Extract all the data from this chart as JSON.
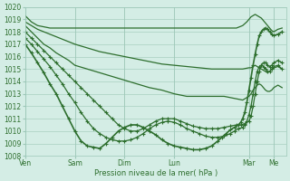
{
  "bg_color": "#d4ede5",
  "grid_color": "#9dc8b8",
  "line_color": "#2d6e2d",
  "xlabel": "Pression niveau de la mer( hPa )",
  "ylim": [
    1008,
    1020
  ],
  "yticks": [
    1008,
    1009,
    1010,
    1011,
    1012,
    1013,
    1014,
    1015,
    1016,
    1017,
    1018,
    1019,
    1020
  ],
  "xtick_labels": [
    "Ven",
    "Sam",
    "Dim",
    "Lun",
    "Mar",
    "Me"
  ],
  "xtick_positions": [
    0,
    48,
    96,
    144,
    216,
    240
  ],
  "xlim": [
    0,
    252
  ],
  "series": [
    {
      "x": [
        0,
        6,
        12,
        18,
        24,
        30,
        36,
        42,
        48,
        60,
        72,
        84,
        96,
        108,
        120,
        132,
        144,
        156,
        168,
        180,
        192,
        204,
        210,
        214,
        216,
        218,
        220,
        222,
        224,
        226,
        228,
        230,
        232,
        234,
        236,
        238,
        240,
        244,
        248
      ],
      "y": [
        1019.3,
        1018.8,
        1018.5,
        1018.4,
        1018.3,
        1018.3,
        1018.3,
        1018.3,
        1018.3,
        1018.3,
        1018.3,
        1018.3,
        1018.3,
        1018.3,
        1018.3,
        1018.3,
        1018.3,
        1018.3,
        1018.3,
        1018.3,
        1018.3,
        1018.3,
        1018.5,
        1018.8,
        1019.0,
        1019.2,
        1019.3,
        1019.4,
        1019.3,
        1019.2,
        1019.1,
        1018.9,
        1018.7,
        1018.5,
        1018.3,
        1018.1,
        1018.0,
        1018.2,
        1018.3
      ],
      "marker": false,
      "lw": 0.9
    },
    {
      "x": [
        0,
        6,
        12,
        18,
        24,
        30,
        36,
        42,
        48,
        60,
        72,
        84,
        96,
        108,
        120,
        132,
        144,
        156,
        168,
        180,
        192,
        204,
        210,
        216,
        218,
        220,
        222,
        224,
        226,
        228,
        230,
        232,
        234,
        236,
        238,
        240,
        244,
        248
      ],
      "y": [
        1018.8,
        1018.5,
        1018.2,
        1018.0,
        1017.8,
        1017.6,
        1017.4,
        1017.2,
        1017.0,
        1016.7,
        1016.4,
        1016.2,
        1016.0,
        1015.8,
        1015.6,
        1015.4,
        1015.3,
        1015.2,
        1015.1,
        1015.0,
        1015.0,
        1015.0,
        1015.0,
        1015.1,
        1015.1,
        1015.2,
        1015.3,
        1015.2,
        1015.1,
        1015.0,
        1014.9,
        1014.8,
        1014.7,
        1014.8,
        1015.0,
        1015.1,
        1015.2,
        1015.0
      ],
      "marker": false,
      "lw": 0.9
    },
    {
      "x": [
        0,
        6,
        12,
        18,
        24,
        30,
        36,
        42,
        48,
        60,
        72,
        84,
        96,
        108,
        120,
        132,
        144,
        156,
        168,
        180,
        192,
        210,
        216,
        218,
        220,
        222,
        224,
        226,
        228,
        230,
        232,
        234,
        236,
        238,
        240,
        244,
        248
      ],
      "y": [
        1018.5,
        1018.0,
        1017.5,
        1017.0,
        1016.7,
        1016.3,
        1016.0,
        1015.7,
        1015.3,
        1015.0,
        1014.7,
        1014.4,
        1014.1,
        1013.8,
        1013.5,
        1013.3,
        1013.0,
        1012.8,
        1012.8,
        1012.8,
        1012.8,
        1012.5,
        1012.8,
        1013.0,
        1013.3,
        1013.5,
        1013.7,
        1013.8,
        1013.7,
        1013.5,
        1013.3,
        1013.2,
        1013.2,
        1013.3,
        1013.5,
        1013.7,
        1013.5
      ],
      "marker": false,
      "lw": 0.9
    },
    {
      "x": [
        0,
        6,
        12,
        18,
        24,
        30,
        36,
        42,
        48,
        54,
        60,
        66,
        72,
        78,
        84,
        90,
        96,
        102,
        108,
        114,
        120,
        126,
        132,
        138,
        144,
        150,
        156,
        162,
        168,
        174,
        180,
        186,
        192,
        198,
        204,
        208,
        212,
        216,
        218,
        220,
        222,
        224,
        226,
        228,
        230,
        232,
        234,
        236,
        238,
        240,
        244,
        248
      ],
      "y": [
        1018.0,
        1017.5,
        1017.0,
        1016.5,
        1016.0,
        1015.5,
        1015.0,
        1014.5,
        1014.0,
        1013.5,
        1013.0,
        1012.5,
        1012.0,
        1011.5,
        1011.0,
        1010.5,
        1010.2,
        1010.0,
        1010.0,
        1010.2,
        1010.5,
        1010.8,
        1011.0,
        1011.0,
        1011.0,
        1010.8,
        1010.6,
        1010.4,
        1010.3,
        1010.2,
        1010.2,
        1010.2,
        1010.3,
        1010.4,
        1010.5,
        1010.5,
        1010.6,
        1010.8,
        1011.2,
        1012.0,
        1013.0,
        1014.0,
        1014.8,
        1015.3,
        1015.5,
        1015.5,
        1015.3,
        1015.2,
        1015.3,
        1015.5,
        1015.7,
        1015.5
      ],
      "marker": true,
      "lw": 0.9
    },
    {
      "x": [
        0,
        6,
        12,
        18,
        24,
        30,
        36,
        42,
        48,
        54,
        60,
        66,
        72,
        78,
        84,
        90,
        96,
        102,
        108,
        114,
        120,
        126,
        132,
        138,
        144,
        150,
        156,
        162,
        168,
        174,
        180,
        186,
        192,
        198,
        202,
        206,
        210,
        212,
        214,
        216,
        218,
        220,
        222,
        224,
        226,
        228,
        230,
        232,
        234,
        236,
        238,
        240,
        244,
        248
      ],
      "y": [
        1017.5,
        1017.0,
        1016.4,
        1015.8,
        1015.2,
        1014.5,
        1013.8,
        1013.0,
        1012.3,
        1011.5,
        1010.8,
        1010.2,
        1009.8,
        1009.5,
        1009.3,
        1009.2,
        1009.2,
        1009.3,
        1009.5,
        1009.8,
        1010.2,
        1010.5,
        1010.7,
        1010.8,
        1010.7,
        1010.5,
        1010.2,
        1010.0,
        1009.8,
        1009.6,
        1009.5,
        1009.5,
        1009.6,
        1009.8,
        1010.0,
        1010.2,
        1010.3,
        1010.5,
        1010.8,
        1011.3,
        1012.0,
        1013.0,
        1014.0,
        1014.8,
        1015.2,
        1015.3,
        1015.2,
        1015.0,
        1014.8,
        1014.8,
        1015.0,
        1015.2,
        1015.3,
        1015.0
      ],
      "marker": true,
      "lw": 0.9
    },
    {
      "x": [
        0,
        6,
        12,
        18,
        24,
        30,
        36,
        42,
        48,
        54,
        60,
        66,
        72,
        78,
        84,
        90,
        96,
        102,
        108,
        114,
        120,
        126,
        132,
        138,
        144,
        150,
        156,
        162,
        168,
        174,
        180,
        186,
        190,
        194,
        198,
        202,
        206,
        208,
        210,
        212,
        214,
        216,
        218,
        220,
        222,
        224,
        226,
        228,
        230,
        232,
        234,
        236,
        238,
        240,
        244,
        248
      ],
      "y": [
        1017.0,
        1016.3,
        1015.5,
        1014.7,
        1013.8,
        1013.0,
        1012.0,
        1011.0,
        1010.0,
        1009.2,
        1008.8,
        1008.7,
        1008.6,
        1009.0,
        1009.5,
        1010.0,
        1010.3,
        1010.5,
        1010.5,
        1010.3,
        1010.0,
        1009.7,
        1009.3,
        1009.0,
        1008.8,
        1008.7,
        1008.6,
        1008.5,
        1008.5,
        1008.6,
        1008.8,
        1009.2,
        1009.5,
        1009.8,
        1010.1,
        1010.3,
        1010.5,
        1010.7,
        1011.0,
        1011.5,
        1012.3,
        1013.3,
        1014.3,
        1015.3,
        1016.2,
        1017.0,
        1017.7,
        1018.0,
        1018.2,
        1018.3,
        1018.2,
        1018.0,
        1017.8,
        1017.7,
        1017.8,
        1018.0
      ],
      "marker": true,
      "lw": 1.2
    }
  ]
}
